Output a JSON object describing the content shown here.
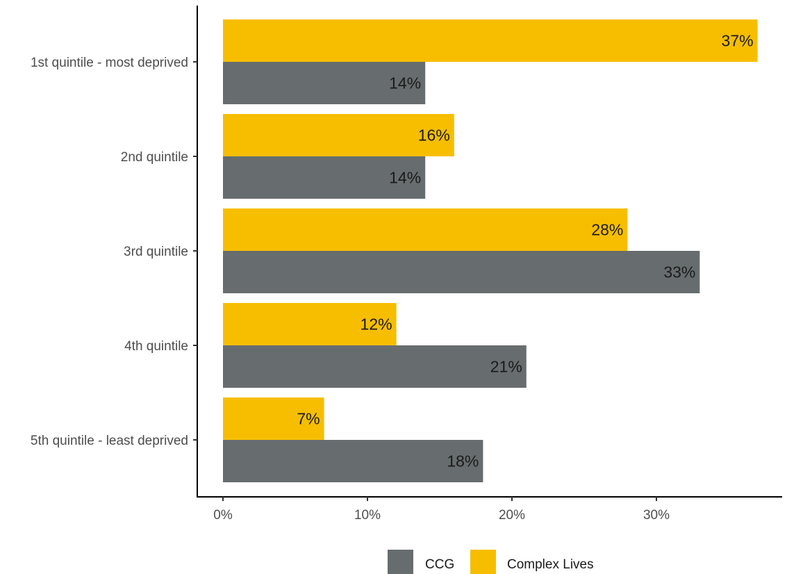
{
  "chart_data": {
    "type": "bar",
    "orientation": "horizontal",
    "categories": [
      "1st quintile - most deprived",
      "2nd quintile",
      "3rd quintile",
      "4th quintile",
      "5th quintile - least deprived"
    ],
    "series": [
      {
        "name": "Complex Lives",
        "color": "#F7BE00",
        "values": [
          37,
          16,
          28,
          12,
          7
        ],
        "labels": [
          "37%",
          "16%",
          "28%",
          "12%",
          "7%"
        ]
      },
      {
        "name": "CCG",
        "color": "#676D6F",
        "values": [
          14,
          14,
          33,
          21,
          18
        ],
        "labels": [
          "14%",
          "14%",
          "33%",
          "21%",
          "18%"
        ]
      }
    ],
    "xlim": [
      0,
      38
    ],
    "x_ticks": [
      0,
      10,
      20,
      30
    ],
    "x_tick_labels": [
      "0%",
      "10%",
      "20%",
      "30%"
    ],
    "legend": {
      "placement": "bottom",
      "items": [
        {
          "name": "CCG",
          "color": "#676D6F"
        },
        {
          "name": "Complex Lives",
          "color": "#F7BE00"
        }
      ]
    },
    "grid": false
  }
}
